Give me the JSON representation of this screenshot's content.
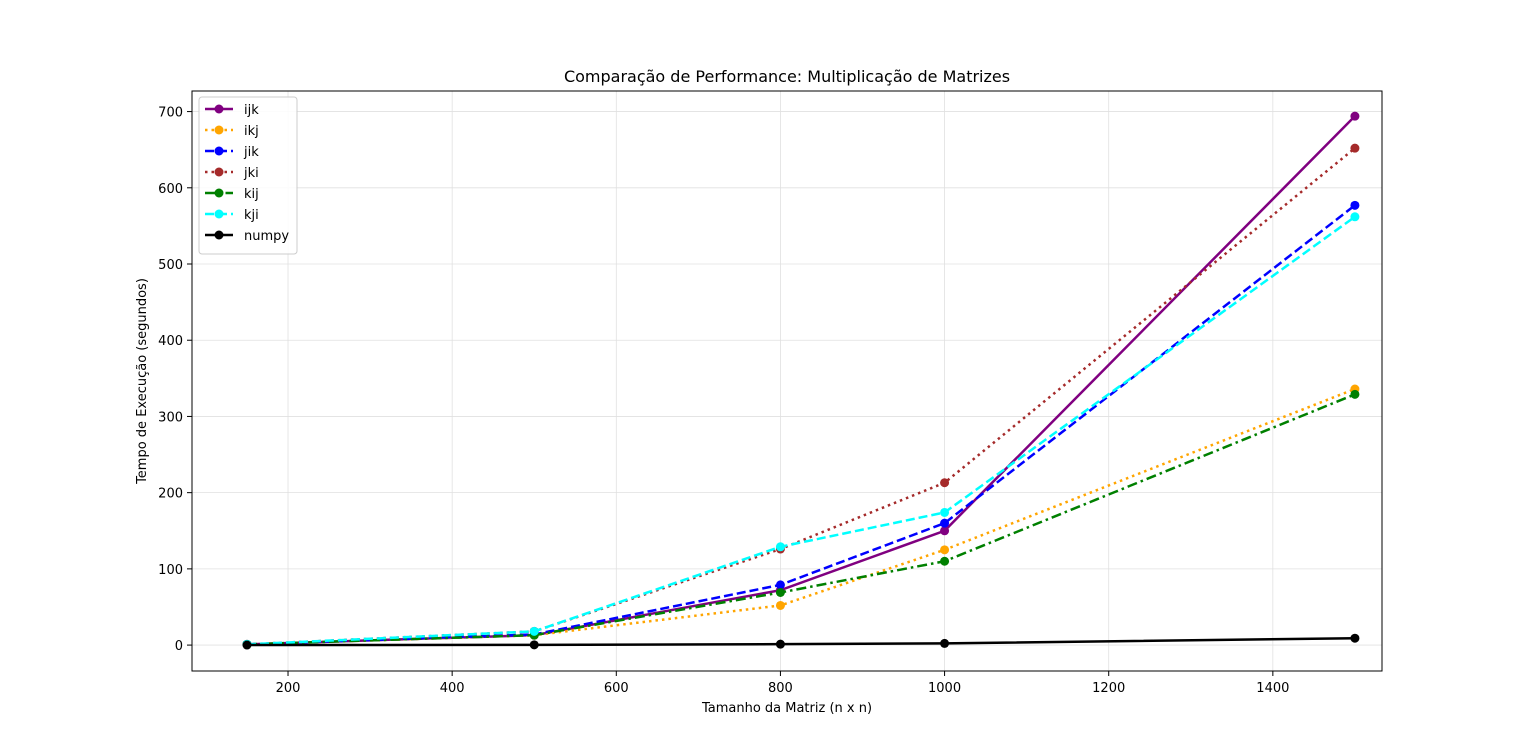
{
  "chart_data": {
    "type": "line",
    "title": "Comparação de Performance: Multiplicação de Matrizes",
    "xlabel": "Tamanho da Matriz (n x n)",
    "ylabel": "Tempo de Execução (segundos)",
    "xlim": [
      83,
      1533
    ],
    "ylim": [
      -34,
      727
    ],
    "xticks": [
      200,
      400,
      600,
      800,
      1000,
      1200,
      1400
    ],
    "yticks": [
      0,
      100,
      200,
      300,
      400,
      500,
      600,
      700
    ],
    "grid": true,
    "legend_position": "top-left",
    "x": [
      150,
      500,
      800,
      1000,
      1500
    ],
    "series": [
      {
        "name": "ijk",
        "color": "#800080",
        "dash": "solid",
        "values": [
          1,
          13,
          72,
          150,
          694
        ]
      },
      {
        "name": "ikj",
        "color": "#ffa500",
        "dash": "dotted",
        "values": [
          1,
          13,
          52,
          125,
          336
        ]
      },
      {
        "name": "jik",
        "color": "#0000ff",
        "dash": "dashed",
        "values": [
          1,
          14,
          79,
          160,
          577
        ]
      },
      {
        "name": "jki",
        "color": "#a52a2a",
        "dash": "dotted",
        "values": [
          1,
          18,
          126,
          213,
          652
        ]
      },
      {
        "name": "kij",
        "color": "#008000",
        "dash": "dashdot",
        "values": [
          1,
          13,
          69,
          110,
          329
        ]
      },
      {
        "name": "kji",
        "color": "#00ffff",
        "dash": "dashed",
        "values": [
          1,
          18,
          129,
          174,
          562
        ]
      },
      {
        "name": "numpy",
        "color": "#000000",
        "dash": "solid",
        "values": [
          0.1,
          0.3,
          1.2,
          2.2,
          9
        ]
      }
    ]
  }
}
